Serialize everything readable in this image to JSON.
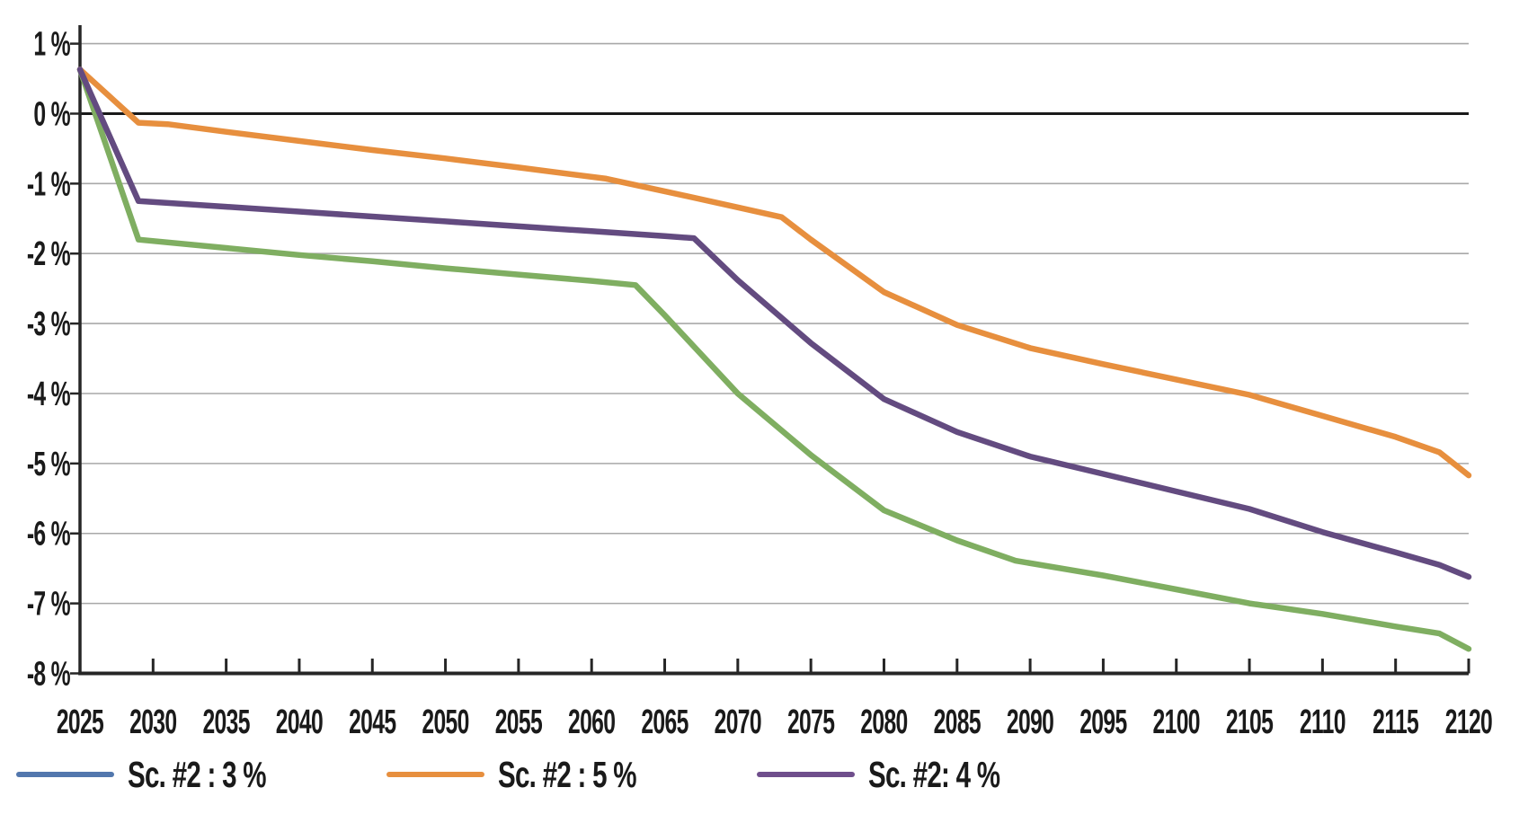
{
  "chart_data": {
    "type": "line",
    "title": "",
    "xlabel": "",
    "ylabel": "",
    "xlim": [
      2025,
      2120
    ],
    "ylim": [
      -8,
      1
    ],
    "grid": true,
    "zero_line": true,
    "legend_position": "bottom-left",
    "background_color": "#ffffff",
    "grid_color": "#a8a8a8",
    "axis_color": "#262626",
    "zero_line_color": "#1a1a1a",
    "text_color": "#1a1a1a",
    "x_ticks": [
      2025,
      2030,
      2035,
      2040,
      2045,
      2050,
      2055,
      2060,
      2065,
      2070,
      2075,
      2080,
      2085,
      2090,
      2095,
      2100,
      2105,
      2110,
      2115,
      2120
    ],
    "x_tick_labels": [
      "2025",
      "2030",
      "2035",
      "2040",
      "2045",
      "2050",
      "2055",
      "2060",
      "2065",
      "2070",
      "2075",
      "2080",
      "2085",
      "2090",
      "2095",
      "2100",
      "2105",
      "2110",
      "2115",
      "2120"
    ],
    "y_ticks": [
      1,
      0,
      -1,
      -2,
      -3,
      -4,
      -5,
      -6,
      -7,
      -8
    ],
    "y_tick_labels": [
      "1 %",
      "0 %",
      "-1 %",
      "-2 %",
      "-3 %",
      "-4 %",
      "-5 %",
      "-6 %",
      "-7 %",
      "-8 %"
    ],
    "series": [
      {
        "name": "Sc. #2 : 3 %",
        "line_color": "#7FAE61",
        "legend_swatch_color": "#5277AD",
        "points": [
          [
            2025,
            0.63
          ],
          [
            2029,
            -1.8
          ],
          [
            2035,
            -1.92
          ],
          [
            2040,
            -2.02
          ],
          [
            2045,
            -2.11
          ],
          [
            2050,
            -2.21
          ],
          [
            2055,
            -2.3
          ],
          [
            2060,
            -2.39
          ],
          [
            2063,
            -2.45
          ],
          [
            2065,
            -2.88
          ],
          [
            2070,
            -4.0
          ],
          [
            2075,
            -4.88
          ],
          [
            2080,
            -5.67
          ],
          [
            2085,
            -6.1
          ],
          [
            2089,
            -6.39
          ],
          [
            2095,
            -6.6
          ],
          [
            2100,
            -6.8
          ],
          [
            2105,
            -7.0
          ],
          [
            2110,
            -7.15
          ],
          [
            2115,
            -7.33
          ],
          [
            2118,
            -7.43
          ],
          [
            2120,
            -7.65
          ]
        ]
      },
      {
        "name": "Sc. #2 : 5 %",
        "line_color": "#E78F3E",
        "legend_swatch_color": "#E78F3E",
        "points": [
          [
            2025,
            0.63
          ],
          [
            2029,
            -0.13
          ],
          [
            2031,
            -0.15
          ],
          [
            2035,
            -0.26
          ],
          [
            2040,
            -0.39
          ],
          [
            2045,
            -0.52
          ],
          [
            2050,
            -0.64
          ],
          [
            2055,
            -0.77
          ],
          [
            2061,
            -0.93
          ],
          [
            2065,
            -1.11
          ],
          [
            2070,
            -1.34
          ],
          [
            2073,
            -1.48
          ],
          [
            2075,
            -1.8
          ],
          [
            2080,
            -2.55
          ],
          [
            2085,
            -3.02
          ],
          [
            2090,
            -3.35
          ],
          [
            2095,
            -3.58
          ],
          [
            2100,
            -3.8
          ],
          [
            2105,
            -4.02
          ],
          [
            2110,
            -4.32
          ],
          [
            2115,
            -4.62
          ],
          [
            2118,
            -4.84
          ],
          [
            2120,
            -5.17
          ]
        ]
      },
      {
        "name": "Sc. #2: 4 %",
        "line_color": "#634B80",
        "legend_swatch_color": "#6F4E8C",
        "points": [
          [
            2025,
            0.63
          ],
          [
            2029,
            -1.25
          ],
          [
            2035,
            -1.33
          ],
          [
            2040,
            -1.4
          ],
          [
            2045,
            -1.47
          ],
          [
            2050,
            -1.54
          ],
          [
            2055,
            -1.61
          ],
          [
            2060,
            -1.68
          ],
          [
            2065,
            -1.75
          ],
          [
            2067,
            -1.78
          ],
          [
            2070,
            -2.38
          ],
          [
            2075,
            -3.28
          ],
          [
            2080,
            -4.08
          ],
          [
            2085,
            -4.55
          ],
          [
            2090,
            -4.9
          ],
          [
            2095,
            -5.15
          ],
          [
            2100,
            -5.4
          ],
          [
            2105,
            -5.65
          ],
          [
            2110,
            -5.98
          ],
          [
            2115,
            -6.27
          ],
          [
            2118,
            -6.45
          ],
          [
            2120,
            -6.62
          ]
        ]
      }
    ]
  }
}
